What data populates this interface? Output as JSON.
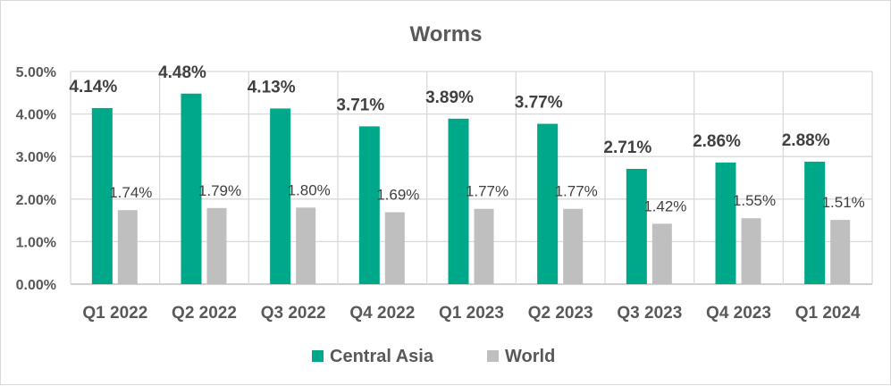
{
  "chart_data": {
    "type": "bar",
    "title": "Worms",
    "categories": [
      "Q1 2022",
      "Q2 2022",
      "Q3 2022",
      "Q4 2022",
      "Q1 2023",
      "Q2 2023",
      "Q3 2023",
      "Q4 2023",
      "Q1 2024"
    ],
    "series": [
      {
        "name": "Central Asia",
        "color": "#00A88A",
        "values": [
          4.14,
          4.48,
          4.13,
          3.71,
          3.89,
          3.77,
          2.71,
          2.86,
          2.88
        ],
        "labels": [
          "4.14%",
          "4.48%",
          "4.13%",
          "3.71%",
          "3.89%",
          "3.77%",
          "2.71%",
          "2.86%",
          "2.88%"
        ]
      },
      {
        "name": "World",
        "color": "#BFBFBF",
        "values": [
          1.74,
          1.79,
          1.8,
          1.69,
          1.77,
          1.77,
          1.42,
          1.55,
          1.51
        ],
        "labels": [
          "1.74%",
          "1.79%",
          "1.80%",
          "1.69%",
          "1.77%",
          "1.77%",
          "1.42%",
          "1.55%",
          "1.51%"
        ]
      }
    ],
    "ylim": [
      0,
      5
    ],
    "yticks": [
      "0.00%",
      "1.00%",
      "2.00%",
      "3.00%",
      "4.00%",
      "5.00%"
    ],
    "xlabel": "",
    "ylabel": "",
    "grid": true,
    "legend": "bottom"
  }
}
